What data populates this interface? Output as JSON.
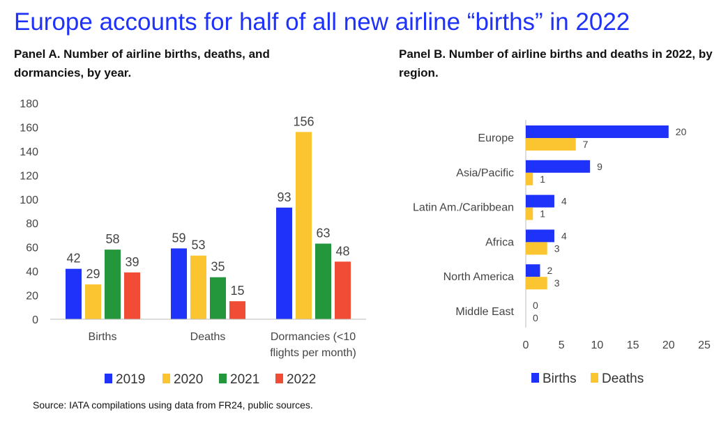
{
  "title": "Europe accounts for half of all new airline “births” in 2022",
  "source": "Source: IATA compilations using data from FR24, public sources.",
  "colors": {
    "title": "#1e32fa",
    "2019": "#1e32fa",
    "2020": "#fbc531",
    "2021": "#24973d",
    "2022": "#f04c36",
    "births": "#1e32fa",
    "deaths": "#fbc531"
  },
  "chart_data": [
    {
      "type": "bar",
      "title": "Panel A. Number of airline births, deaths, and dormancies, by year.",
      "categories": [
        "Births",
        "Deaths",
        "Dormancies (<10 flights per month)"
      ],
      "category_lines": [
        [
          "Births"
        ],
        [
          "Deaths"
        ],
        [
          "Dormancies (<10",
          "flights per month)"
        ]
      ],
      "series": [
        {
          "name": "2019",
          "color": "#1e32fa",
          "values": [
            42,
            59,
            93
          ]
        },
        {
          "name": "2020",
          "color": "#fbc531",
          "values": [
            29,
            53,
            156
          ]
        },
        {
          "name": "2021",
          "color": "#24973d",
          "values": [
            58,
            35,
            63
          ]
        },
        {
          "name": "2022",
          "color": "#f04c36",
          "values": [
            39,
            15,
            48
          ]
        }
      ],
      "ylim": [
        0,
        180
      ],
      "yticks": [
        "0",
        "20",
        "40",
        "60",
        "80",
        "100",
        "120",
        "140",
        "160",
        "180"
      ],
      "legend": "bottom"
    },
    {
      "type": "bar",
      "orientation": "horizontal",
      "title": "Panel B. Number of airline births and deaths in 2022, by region.",
      "categories": [
        "Europe",
        "Asia/Pacific",
        "Latin Am./Caribbean",
        "Africa",
        "North America",
        "Middle East"
      ],
      "series": [
        {
          "name": "Births",
          "color": "#1e32fa",
          "values": [
            20,
            9,
            4,
            4,
            2,
            0
          ]
        },
        {
          "name": "Deaths",
          "color": "#fbc531",
          "values": [
            7,
            1,
            1,
            3,
            3,
            0
          ]
        }
      ],
      "xlim": [
        0,
        25
      ],
      "xticks": [
        "0",
        "5",
        "10",
        "15",
        "20",
        "25"
      ],
      "legend": "bottom"
    }
  ]
}
